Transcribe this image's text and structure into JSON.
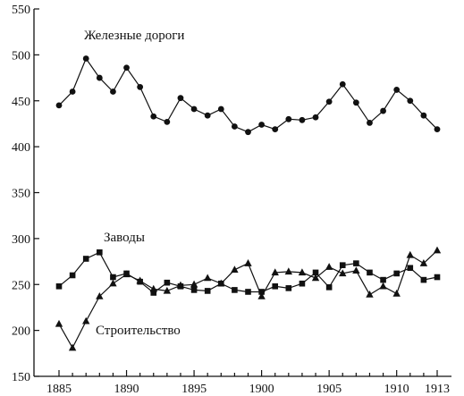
{
  "chart_data": {
    "type": "line",
    "title": "",
    "xlabel": "",
    "ylabel": "",
    "xlim": [
      1885,
      1913
    ],
    "ylim": [
      150,
      550
    ],
    "x": [
      1885,
      1886,
      1887,
      1888,
      1889,
      1890,
      1891,
      1892,
      1893,
      1894,
      1895,
      1896,
      1897,
      1898,
      1899,
      1900,
      1901,
      1902,
      1903,
      1904,
      1905,
      1906,
      1907,
      1908,
      1909,
      1910,
      1911,
      1912,
      1913
    ],
    "x_ticks": [
      1885,
      1890,
      1895,
      1900,
      1905,
      1910,
      1913
    ],
    "x_tick_labels": [
      "1885",
      "1890",
      "1895",
      "1900",
      "1905",
      "1910",
      "1913"
    ],
    "y_ticks": [
      150,
      200,
      250,
      300,
      350,
      400,
      450,
      500,
      550
    ],
    "y_tick_labels": [
      "150",
      "200",
      "250",
      "300",
      "350",
      "400",
      "450",
      "500",
      "550"
    ],
    "grid": false,
    "legend": "none",
    "series": [
      {
        "name": "Железные дороги",
        "marker": "circle",
        "values": [
          445,
          460,
          496,
          475,
          460,
          486,
          465,
          433,
          427,
          453,
          441,
          434,
          441,
          422,
          416,
          424,
          419,
          430,
          429,
          432,
          449,
          468,
          448,
          426,
          439,
          462,
          450,
          434,
          419
        ]
      },
      {
        "name": "Заводы",
        "marker": "square",
        "values": [
          248,
          260,
          278,
          285,
          258,
          262,
          253,
          241,
          252,
          248,
          244,
          243,
          251,
          244,
          242,
          242,
          248,
          246,
          251,
          263,
          247,
          271,
          273,
          263,
          255,
          262,
          268,
          255,
          258
        ]
      },
      {
        "name": "Строительство",
        "marker": "triangle",
        "values": [
          207,
          181,
          210,
          237,
          251,
          261,
          254,
          245,
          243,
          249,
          250,
          257,
          251,
          266,
          273,
          237,
          263,
          264,
          263,
          257,
          269,
          262,
          265,
          239,
          248,
          240,
          282,
          273,
          287
        ]
      }
    ]
  }
}
